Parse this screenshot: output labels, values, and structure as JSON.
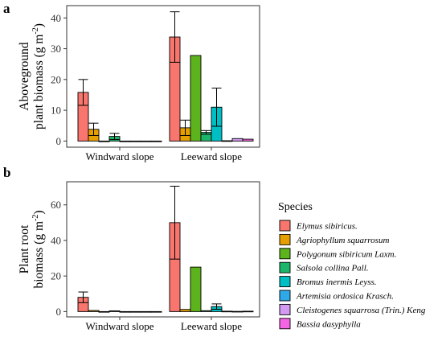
{
  "species": [
    "Elymus sibiricus.",
    "Agriophyllum squarrosum",
    "Polygonum sibiricum Laxm.",
    "Salsola collina Pall.",
    "Bromus inermis Leyss.",
    "Artemisia ordosica Krasch.",
    "Cleistogenes squarrosa (Trin.) Keng",
    "Bassia dasyphylla"
  ],
  "colors": [
    "#F8766D",
    "#E69F00",
    "#5DB31B",
    "#1DB56B",
    "#00BFC4",
    "#2FA8E8",
    "#D39AF2",
    "#F564E3"
  ],
  "legend": {
    "title": "Species"
  },
  "chart_data": [
    {
      "type": "bar",
      "panel": "a",
      "ylabel_line1": "Aboveground",
      "ylabel_line2": "plant biomass (g m",
      "ylabel_sup": "-2",
      "ylabel_close": ")",
      "ylim": [
        -2,
        44
      ],
      "yticks": [
        0,
        10,
        20,
        30,
        40
      ],
      "categories": [
        "Windward slope",
        "Leeward slope"
      ],
      "series": [
        {
          "name": "Elymus sibiricus.",
          "values": [
            15.8,
            33.8
          ],
          "errors": [
            4.2,
            8.2
          ]
        },
        {
          "name": "Agriophyllum squarrosum",
          "values": [
            3.8,
            4.3
          ],
          "errors": [
            2.0,
            2.5
          ]
        },
        {
          "name": "Polygonum sibiricum Laxm.",
          "values": [
            0,
            27.8
          ],
          "errors": [
            0,
            0
          ]
        },
        {
          "name": "Salsola collina Pall.",
          "values": [
            1.5,
            2.8
          ],
          "errors": [
            1.0,
            0.6
          ]
        },
        {
          "name": "Bromus inermis Leyss.",
          "values": [
            0,
            11.0
          ],
          "errors": [
            0,
            6.2
          ]
        },
        {
          "name": "Artemisia ordosica Krasch.",
          "values": [
            0,
            0.1
          ],
          "errors": [
            0,
            0
          ]
        },
        {
          "name": "Cleistogenes squarrosa (Trin.) Keng",
          "values": [
            0,
            0.8
          ],
          "errors": [
            0,
            0
          ]
        },
        {
          "name": "Bassia dasyphylla",
          "values": [
            0,
            0.6
          ],
          "errors": [
            0,
            0
          ]
        }
      ]
    },
    {
      "type": "bar",
      "panel": "b",
      "ylabel_line1": "Plant root",
      "ylabel_line2": "biomass (g m",
      "ylabel_sup": "-2",
      "ylabel_close": ")",
      "ylim": [
        -3,
        73
      ],
      "yticks": [
        0,
        20,
        40,
        60
      ],
      "categories": [
        "Windward slope",
        "Leeward slope"
      ],
      "series": [
        {
          "name": "Elymus sibiricus.",
          "values": [
            8.0,
            50.0
          ],
          "errors": [
            3.0,
            20.5
          ]
        },
        {
          "name": "Agriophyllum squarrosum",
          "values": [
            0.6,
            1.2
          ],
          "errors": [
            0,
            0
          ]
        },
        {
          "name": "Polygonum sibiricum Laxm.",
          "values": [
            0,
            25.0
          ],
          "errors": [
            0,
            0
          ]
        },
        {
          "name": "Salsola collina Pall.",
          "values": [
            0.4,
            0.5
          ],
          "errors": [
            0,
            0
          ]
        },
        {
          "name": "Bromus inermis Leyss.",
          "values": [
            0,
            2.8
          ],
          "errors": [
            0,
            1.5
          ]
        },
        {
          "name": "Artemisia ordosica Krasch.",
          "values": [
            0,
            0.2
          ],
          "errors": [
            0,
            0
          ]
        },
        {
          "name": "Cleistogenes squarrosa (Trin.) Keng",
          "values": [
            0,
            0.1
          ],
          "errors": [
            0,
            0
          ]
        },
        {
          "name": "Bassia dasyphylla",
          "values": [
            0,
            0.2
          ],
          "errors": [
            0,
            0
          ]
        }
      ]
    }
  ]
}
